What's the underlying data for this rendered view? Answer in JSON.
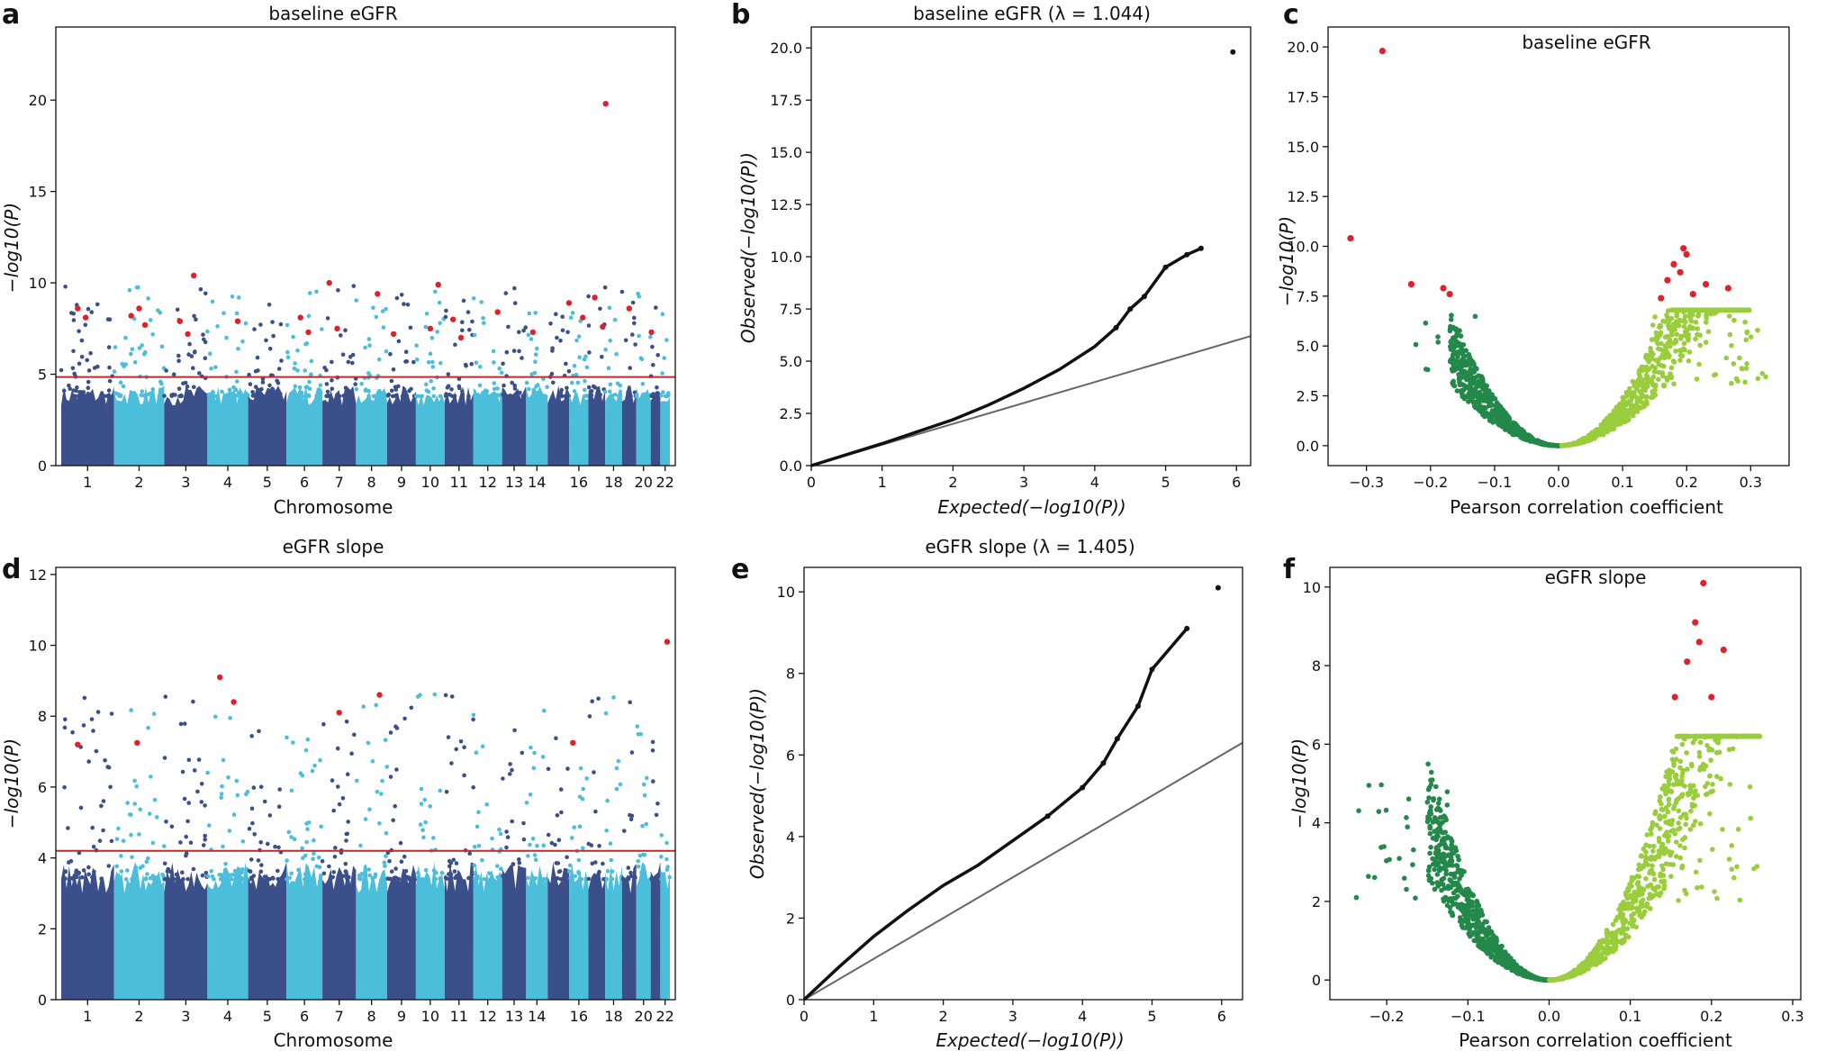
{
  "figure": {
    "panels": [
      {
        "letter": "a"
      },
      {
        "letter": "b"
      },
      {
        "letter": "c"
      },
      {
        "letter": "d"
      },
      {
        "letter": "e"
      },
      {
        "letter": "f"
      }
    ]
  },
  "colors": {
    "manhattan_dark": "#3b4f8a",
    "manhattan_light": "#4bbedb",
    "significant": "#e0202a",
    "threshold_line": "#c62828",
    "qq_points": "#111111",
    "qq_diagonal": "#666666",
    "volcano_neg": "#23884a",
    "volcano_pos": "#9acd3c"
  },
  "chart_data": [
    {
      "id": "a",
      "type": "scatter",
      "subtype": "manhattan",
      "title": "baseline eGFR",
      "xlabel": "Chromosome",
      "ylabel": "−log10(P)",
      "categories": [
        "1",
        "2",
        "3",
        "4",
        "5",
        "6",
        "7",
        "8",
        "9",
        "10",
        "11",
        "12",
        "13",
        "14",
        "16",
        "18",
        "20",
        "22"
      ],
      "ylim": [
        0,
        24
      ],
      "yticks": [
        0,
        5,
        10,
        15,
        20
      ],
      "threshold": 4.85,
      "significant_points": [
        {
          "x": 1,
          "y": 8.6
        },
        {
          "x": 1,
          "y": 8.1
        },
        {
          "x": 2,
          "y": 7.7
        },
        {
          "x": 2,
          "y": 8.2
        },
        {
          "x": 2,
          "y": 8.6
        },
        {
          "x": 3,
          "y": 10.4
        },
        {
          "x": 3,
          "y": 7.9
        },
        {
          "x": 3,
          "y": 7.2
        },
        {
          "x": 4,
          "y": 7.9
        },
        {
          "x": 6,
          "y": 8.1
        },
        {
          "x": 6,
          "y": 7.3
        },
        {
          "x": 7,
          "y": 10.0
        },
        {
          "x": 7,
          "y": 7.5
        },
        {
          "x": 8,
          "y": 9.4
        },
        {
          "x": 9,
          "y": 7.2
        },
        {
          "x": 10,
          "y": 7.5
        },
        {
          "x": 10,
          "y": 9.9
        },
        {
          "x": 11,
          "y": 8.0
        },
        {
          "x": 11,
          "y": 7.0
        },
        {
          "x": 12,
          "y": 8.4
        },
        {
          "x": 14,
          "y": 7.3
        },
        {
          "x": 16,
          "y": 8.1
        },
        {
          "x": 16,
          "y": 8.9
        },
        {
          "x": 17,
          "y": 9.2
        },
        {
          "x": 17,
          "y": 7.6
        },
        {
          "x": 18,
          "y": 19.8
        },
        {
          "x": 19,
          "y": 8.6
        },
        {
          "x": 20,
          "y": 7.3
        }
      ]
    },
    {
      "id": "b",
      "type": "scatter",
      "subtype": "qq",
      "title": "baseline eGFR (λ = 1.044)",
      "xlabel": "Expected(−log10(P))",
      "ylabel": "Observed(−log10(P))",
      "xlim": [
        0,
        6.2
      ],
      "ylim": [
        0,
        21
      ],
      "xticks": [
        0,
        1,
        2,
        3,
        4,
        5,
        6
      ],
      "yticks": [
        "0.0",
        "2.5",
        "5.0",
        "7.5",
        "10.0",
        "12.5",
        "15.0",
        "17.5",
        "20.0"
      ],
      "lambda": 1.044,
      "observed_curve": [
        [
          0,
          0
        ],
        [
          1,
          1.05
        ],
        [
          2,
          2.2
        ],
        [
          2.5,
          2.9
        ],
        [
          3,
          3.7
        ],
        [
          3.5,
          4.6
        ],
        [
          4,
          5.7
        ],
        [
          4.3,
          6.6
        ],
        [
          4.5,
          7.5
        ],
        [
          4.7,
          8.1
        ],
        [
          5,
          9.5
        ],
        [
          5.3,
          10.1
        ],
        [
          5.5,
          10.4
        ],
        [
          5.95,
          19.8
        ]
      ]
    },
    {
      "id": "c",
      "type": "scatter",
      "subtype": "volcano",
      "title": "baseline eGFR",
      "xlabel": "Pearson correlation coefficient",
      "ylabel": "−log10(P)",
      "xlim": [
        -0.36,
        0.36
      ],
      "ylim": [
        -1,
        21
      ],
      "xticks": [
        "−0.3",
        "−0.2",
        "−0.1",
        "0.0",
        "0.1",
        "0.2",
        "0.3"
      ],
      "yticks": [
        "0.0",
        "2.5",
        "5.0",
        "7.5",
        "10.0",
        "12.5",
        "15.0",
        "17.5",
        "20.0"
      ],
      "significant_points": [
        {
          "x": -0.325,
          "y": 10.4
        },
        {
          "x": -0.275,
          "y": 19.8
        },
        {
          "x": -0.23,
          "y": 8.1
        },
        {
          "x": -0.18,
          "y": 7.9
        },
        {
          "x": -0.17,
          "y": 7.6
        },
        {
          "x": 0.16,
          "y": 7.4
        },
        {
          "x": 0.17,
          "y": 8.3
        },
        {
          "x": 0.18,
          "y": 9.1
        },
        {
          "x": 0.19,
          "y": 8.7
        },
        {
          "x": 0.195,
          "y": 9.9
        },
        {
          "x": 0.2,
          "y": 9.6
        },
        {
          "x": 0.21,
          "y": 7.6
        },
        {
          "x": 0.23,
          "y": 8.1
        },
        {
          "x": 0.265,
          "y": 7.9
        }
      ]
    },
    {
      "id": "d",
      "type": "scatter",
      "subtype": "manhattan",
      "title": "eGFR slope",
      "xlabel": "Chromosome",
      "ylabel": "−log10(P)",
      "categories": [
        "1",
        "2",
        "3",
        "4",
        "5",
        "6",
        "7",
        "8",
        "9",
        "10",
        "11",
        "12",
        "13",
        "14",
        "16",
        "18",
        "20",
        "22"
      ],
      "ylim": [
        0,
        12.2
      ],
      "yticks": [
        0,
        2,
        4,
        6,
        8,
        10,
        12
      ],
      "threshold": 4.2,
      "significant_points": [
        {
          "x": 1,
          "y": 7.2
        },
        {
          "x": 2,
          "y": 7.25
        },
        {
          "x": 4,
          "y": 8.4
        },
        {
          "x": 4,
          "y": 9.1
        },
        {
          "x": 7,
          "y": 8.1
        },
        {
          "x": 8,
          "y": 8.6
        },
        {
          "x": 16,
          "y": 7.25
        },
        {
          "x": 22,
          "y": 10.1
        }
      ]
    },
    {
      "id": "e",
      "type": "scatter",
      "subtype": "qq",
      "title": "eGFR slope (λ = 1.405)",
      "xlabel": "Expected(−log10(P))",
      "ylabel": "Observed(−log10(P))",
      "xlim": [
        0,
        6.3
      ],
      "ylim": [
        0,
        10.6
      ],
      "xticks": [
        0,
        1,
        2,
        3,
        4,
        5,
        6
      ],
      "yticks": [
        0,
        2,
        4,
        6,
        8,
        10
      ],
      "lambda": 1.405,
      "observed_curve": [
        [
          0,
          0
        ],
        [
          0.5,
          0.8
        ],
        [
          1,
          1.55
        ],
        [
          1.5,
          2.2
        ],
        [
          2,
          2.8
        ],
        [
          2.5,
          3.3
        ],
        [
          3,
          3.9
        ],
        [
          3.5,
          4.5
        ],
        [
          4,
          5.2
        ],
        [
          4.3,
          5.8
        ],
        [
          4.5,
          6.4
        ],
        [
          4.8,
          7.2
        ],
        [
          5,
          8.1
        ],
        [
          5.5,
          9.1
        ],
        [
          5.95,
          10.1
        ]
      ]
    },
    {
      "id": "f",
      "type": "scatter",
      "subtype": "volcano",
      "title": "eGFR slope",
      "xlabel": "Pearson correlation coefficient",
      "ylabel": "−log10(P)",
      "xlim": [
        -0.27,
        0.31
      ],
      "ylim": [
        -0.5,
        10.5
      ],
      "xticks": [
        "−0.2",
        "−0.1",
        "0.0",
        "0.1",
        "0.2",
        "0.3"
      ],
      "yticks": [
        0,
        2,
        4,
        6,
        8,
        10
      ],
      "significant_points": [
        {
          "x": 0.155,
          "y": 7.2
        },
        {
          "x": 0.17,
          "y": 8.1
        },
        {
          "x": 0.18,
          "y": 9.1
        },
        {
          "x": 0.185,
          "y": 8.6
        },
        {
          "x": 0.19,
          "y": 10.1
        },
        {
          "x": 0.2,
          "y": 7.2
        },
        {
          "x": 0.215,
          "y": 8.4
        }
      ]
    }
  ]
}
